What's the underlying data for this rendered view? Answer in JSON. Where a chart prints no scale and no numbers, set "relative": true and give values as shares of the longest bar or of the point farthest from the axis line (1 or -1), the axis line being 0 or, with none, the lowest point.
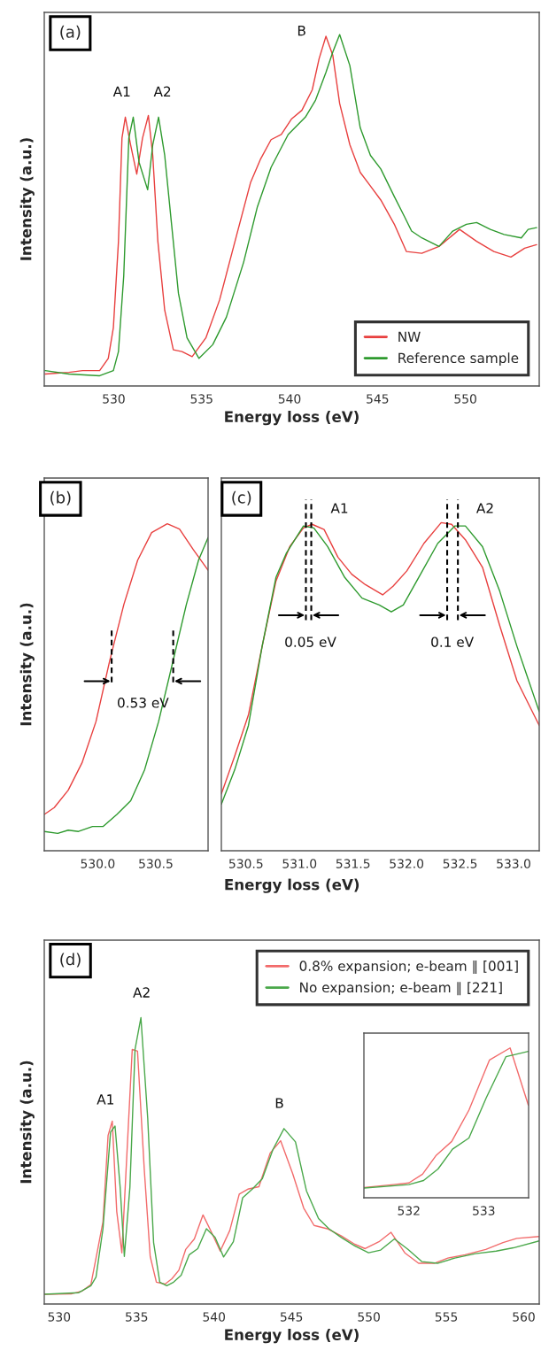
{
  "chart_data": [
    {
      "type": "line",
      "relative": true,
      "xlabel": "Energy loss (eV)",
      "ylabel": "Intensity (a.u.)",
      "tick_labels": "x",
      "xlim": [
        526.05,
        554.2
      ],
      "xticks": [
        530,
        535,
        540,
        545,
        550
      ],
      "legend": "bottom right",
      "annotations": [
        "(a)",
        "A1",
        "A2",
        "B"
      ],
      "series": [
        {
          "name": "NW",
          "color": "#e8403f",
          "x": [
            526.1,
            527.45,
            528.23,
            529.2,
            529.69,
            529.98,
            530.27,
            530.47,
            530.66,
            530.96,
            531.31,
            531.64,
            531.97,
            532.22,
            532.51,
            532.9,
            533.39,
            533.88,
            534.46,
            535.24,
            536.02,
            537.0,
            537.78,
            538.36,
            538.95,
            539.53,
            540.12,
            540.7,
            541.29,
            541.68,
            542.07,
            542.46,
            542.85,
            543.43,
            544.02,
            544.6,
            545.19,
            545.96,
            546.65,
            547.52,
            548.5,
            549.67,
            550.64,
            551.62,
            552.59,
            553.37,
            554.05
          ],
          "values": [
            0.005,
            0.01,
            0.015,
            0.015,
            0.051,
            0.141,
            0.394,
            0.697,
            0.758,
            0.677,
            0.591,
            0.697,
            0.763,
            0.646,
            0.394,
            0.192,
            0.076,
            0.071,
            0.056,
            0.111,
            0.222,
            0.414,
            0.566,
            0.636,
            0.692,
            0.707,
            0.753,
            0.778,
            0.838,
            0.929,
            0.995,
            0.939,
            0.798,
            0.677,
            0.596,
            0.556,
            0.515,
            0.444,
            0.364,
            0.359,
            0.379,
            0.429,
            0.394,
            0.364,
            0.348,
            0.374,
            0.384
          ]
        },
        {
          "name": "Reference sample",
          "color": "#2e9a2e",
          "x": [
            526.1,
            527.45,
            529.2,
            529.98,
            530.27,
            530.57,
            530.86,
            531.11,
            531.44,
            531.93,
            532.22,
            532.55,
            532.9,
            533.29,
            533.68,
            534.17,
            534.85,
            535.63,
            536.41,
            537.39,
            538.17,
            538.95,
            539.92,
            540.9,
            541.48,
            542.07,
            542.46,
            542.85,
            543.43,
            544.02,
            544.6,
            545.19,
            545.96,
            546.55,
            546.94,
            547.52,
            548.5,
            549.28,
            550.06,
            550.64,
            551.42,
            552.2,
            553.18,
            553.57,
            554.05
          ],
          "values": [
            0.015,
            0.005,
            0,
            0.015,
            0.071,
            0.293,
            0.697,
            0.758,
            0.626,
            0.545,
            0.677,
            0.758,
            0.646,
            0.444,
            0.242,
            0.111,
            0.051,
            0.091,
            0.172,
            0.333,
            0.495,
            0.611,
            0.707,
            0.758,
            0.808,
            0.889,
            0.949,
            1,
            0.909,
            0.727,
            0.646,
            0.606,
            0.525,
            0.465,
            0.424,
            0.404,
            0.379,
            0.424,
            0.444,
            0.449,
            0.429,
            0.414,
            0.404,
            0.429,
            0.434
          ]
        }
      ]
    },
    {
      "type": "line",
      "relative": true,
      "ylabel": "Intensity (a.u.)",
      "tick_labels": "x",
      "xlim": [
        529.54,
        530.95
      ],
      "xticks": [
        {
          "value": 530,
          "label": "530.0"
        },
        530.5
      ],
      "annotations": [
        "(b)",
        "0.53 eV"
      ],
      "ref_lines": [
        {
          "axis": "x",
          "value": 530.12,
          "color": "#000000",
          "line_style": "dashed"
        },
        {
          "axis": "x",
          "value": 530.65,
          "color": "#000000",
          "line_style": "dashed"
        }
      ],
      "series": [
        {
          "color": "#e8403f",
          "x": [
            529.54,
            529.626,
            529.746,
            529.865,
            529.985,
            530.105,
            530.225,
            530.344,
            530.464,
            530.599,
            530.704,
            530.823,
            530.95
          ],
          "values": [
            0.111,
            0.132,
            0.185,
            0.269,
            0.395,
            0.584,
            0.753,
            0.889,
            0.973,
            1,
            0.984,
            0.921,
            0.858
          ]
        },
        {
          "color": "#2e9a2e",
          "x": [
            529.54,
            529.656,
            529.746,
            529.835,
            529.955,
            530.045,
            530.165,
            530.284,
            530.404,
            530.524,
            530.644,
            530.763,
            530.868,
            530.95
          ],
          "values": [
            0.059,
            0.053,
            0.063,
            0.059,
            0.074,
            0.074,
            0.111,
            0.153,
            0.248,
            0.395,
            0.574,
            0.753,
            0.889,
            0.958
          ]
        }
      ]
    },
    {
      "type": "line",
      "relative": true,
      "xlabel": "Energy loss (eV)",
      "tick_labels": "x",
      "xlim": [
        530.27,
        533.24
      ],
      "xticks": [
        530.5,
        {
          "value": 531,
          "label": "531.0"
        },
        531.5,
        {
          "value": 532,
          "label": "532.0"
        },
        532.5,
        {
          "value": 533,
          "label": "533.0"
        }
      ],
      "annotations": [
        "(c)",
        "A1",
        "A2",
        "0.05 eV",
        "0.1 eV"
      ],
      "ref_lines": [
        {
          "axis": "x",
          "value": 531.06,
          "color": "#000000",
          "line_style": "dashed"
        },
        {
          "axis": "x",
          "value": 531.11,
          "color": "#000000",
          "line_style": "dashed"
        },
        {
          "axis": "x",
          "value": 532.38,
          "color": "#000000",
          "line_style": "dashed"
        },
        {
          "axis": "x",
          "value": 532.48,
          "color": "#000000",
          "line_style": "dashed"
        }
      ],
      "series": [
        {
          "color": "#e8403f",
          "x": [
            530.27,
            530.394,
            530.523,
            530.651,
            530.78,
            530.909,
            531.037,
            531.118,
            531.23,
            531.359,
            531.488,
            531.616,
            531.777,
            531.874,
            532.003,
            532.163,
            532.324,
            532.421,
            532.55,
            532.71,
            532.871,
            533.032,
            533.24
          ],
          "values": [
            0.173,
            0.288,
            0.414,
            0.623,
            0.822,
            0.927,
            0.984,
            0.995,
            0.979,
            0.895,
            0.843,
            0.811,
            0.78,
            0.806,
            0.853,
            0.937,
            1,
            0.995,
            0.948,
            0.864,
            0.686,
            0.518,
            0.382
          ]
        },
        {
          "color": "#2e9a2e",
          "x": [
            530.27,
            530.394,
            530.523,
            530.651,
            530.78,
            530.876,
            531.037,
            531.134,
            531.263,
            531.423,
            531.584,
            531.745,
            531.858,
            531.97,
            532.131,
            532.292,
            532.453,
            532.55,
            532.71,
            532.871,
            533.032,
            533.24
          ],
          "values": [
            0.142,
            0.246,
            0.382,
            0.623,
            0.833,
            0.906,
            0.99,
            0.984,
            0.927,
            0.833,
            0.77,
            0.749,
            0.728,
            0.749,
            0.843,
            0.937,
            0.99,
            0.99,
            0.927,
            0.791,
            0.623,
            0.424
          ]
        }
      ]
    },
    {
      "type": "line",
      "relative": true,
      "xlabel": "Energy loss (eV)",
      "ylabel": "Intensity (a.u.)",
      "tick_labels": "x",
      "xlim": [
        529.04,
        561.0
      ],
      "xticks": [
        530,
        535,
        540,
        545,
        550,
        555,
        560
      ],
      "legend": "top right",
      "annotations": [
        "(d)",
        "A1",
        "A2",
        "B"
      ],
      "series": [
        {
          "name": "0.8% expansion; e-beam ∥ [001]",
          "color": "#f26b6b",
          "x": [
            529.04,
            530.82,
            531.49,
            532.05,
            532.49,
            532.83,
            533.16,
            533.43,
            533.72,
            534.05,
            534.72,
            535.06,
            535.5,
            535.88,
            536.28,
            536.84,
            537.28,
            537.73,
            538.17,
            538.73,
            539.29,
            539.84,
            540.4,
            541.02,
            541.63,
            542.18,
            542.9,
            543.63,
            544.3,
            545.08,
            545.79,
            546.46,
            547.31,
            548.2,
            549.09,
            549.76,
            550.65,
            551.43,
            552.32,
            553.21,
            554.21,
            555.1,
            556.21,
            557.55,
            558.66,
            559.55,
            561.0
          ],
          "values": [
            0,
            0.002,
            0.012,
            0.035,
            0.162,
            0.262,
            0.574,
            0.626,
            0.299,
            0.15,
            0.885,
            0.879,
            0.449,
            0.137,
            0.044,
            0.037,
            0.056,
            0.087,
            0.162,
            0.2,
            0.287,
            0.224,
            0.156,
            0.231,
            0.362,
            0.38,
            0.389,
            0.511,
            0.555,
            0.436,
            0.312,
            0.249,
            0.237,
            0.212,
            0.181,
            0.165,
            0.19,
            0.224,
            0.15,
            0.112,
            0.112,
            0.131,
            0.143,
            0.162,
            0.187,
            0.202,
            0.209
          ]
        },
        {
          "name": "No expansion; e-beam ∥ [22̄1]",
          "color": "#4aa84a",
          "x": [
            529.04,
            531.27,
            532.05,
            532.38,
            532.83,
            533.32,
            533.61,
            533.94,
            534.21,
            534.57,
            534.9,
            535.28,
            535.72,
            536.1,
            536.5,
            536.95,
            537.39,
            537.88,
            538.4,
            538.95,
            539.51,
            540.07,
            540.62,
            541.25,
            541.85,
            542.47,
            543.12,
            543.81,
            544.52,
            545.26,
            545.97,
            546.75,
            547.42,
            548.2,
            549.09,
            549.98,
            550.76,
            551.65,
            552.54,
            553.43,
            554.43,
            555.55,
            556.88,
            558.22,
            559.33,
            561.0
          ],
          "values": [
            0,
            0.006,
            0.031,
            0.062,
            0.237,
            0.586,
            0.608,
            0.387,
            0.137,
            0.387,
            0.885,
            1,
            0.636,
            0.187,
            0.044,
            0.031,
            0.044,
            0.069,
            0.143,
            0.165,
            0.237,
            0.206,
            0.135,
            0.19,
            0.349,
            0.38,
            0.418,
            0.524,
            0.599,
            0.551,
            0.374,
            0.274,
            0.237,
            0.206,
            0.175,
            0.15,
            0.16,
            0.2,
            0.162,
            0.118,
            0.112,
            0.131,
            0.147,
            0.156,
            0.168,
            0.193
          ]
        }
      ]
    },
    {
      "type": "line",
      "relative": true,
      "tick_labels": "x",
      "xlim": [
        531.4,
        533.6
      ],
      "xticks": [
        532,
        533
      ],
      "series": [
        {
          "color": "#f26b6b",
          "x": [
            531.404,
            531.794,
            532.0,
            532.183,
            532.367,
            532.573,
            532.803,
            533.078,
            533.353,
            533.596
          ],
          "values": [
            0.069,
            0.088,
            0.099,
            0.157,
            0.284,
            0.376,
            0.585,
            0.92,
            1,
            0.619
          ]
        },
        {
          "color": "#4aa84a",
          "x": [
            531.404,
            532.0,
            532.197,
            532.39,
            532.583,
            532.803,
            533.032,
            533.298,
            533.596
          ],
          "values": [
            0.065,
            0.088,
            0.115,
            0.192,
            0.324,
            0.399,
            0.665,
            0.942,
            0.977
          ]
        }
      ]
    }
  ]
}
